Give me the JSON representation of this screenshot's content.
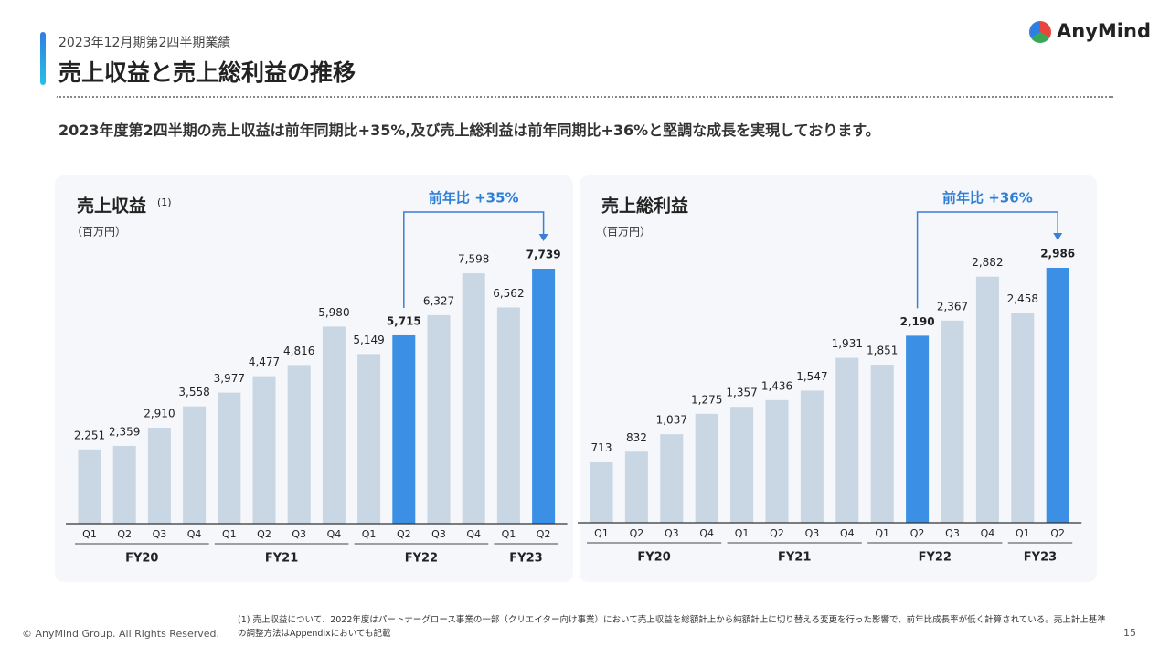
{
  "header": {
    "subtitle": "2023年12月期第2四半期業績",
    "title": "売上収益と売上総利益の推移",
    "logo": "AnyMind"
  },
  "summary": "2023年度第2四半期の売上収益は前年同期比+35%,及び売上総利益は前年同期比+36%と堅調な成長を実現しております。",
  "chart_data": [
    {
      "type": "bar",
      "title": "売上収益",
      "title_note": "(1)",
      "unit": "（百万円）",
      "categories": [
        "Q1",
        "Q2",
        "Q3",
        "Q4",
        "Q1",
        "Q2",
        "Q3",
        "Q4",
        "Q1",
        "Q2",
        "Q3",
        "Q4",
        "Q1",
        "Q2"
      ],
      "groups": [
        "FY20",
        "FY20",
        "FY20",
        "FY20",
        "FY21",
        "FY21",
        "FY21",
        "FY21",
        "FY22",
        "FY22",
        "FY22",
        "FY22",
        "FY23",
        "FY23"
      ],
      "values": [
        2251,
        2359,
        2910,
        3558,
        3977,
        4477,
        4816,
        5980,
        5149,
        5715,
        6327,
        7598,
        6562,
        7739
      ],
      "value_labels": [
        "2,251",
        "2,359",
        "2,910",
        "3,558",
        "3,977",
        "4,477",
        "4,816",
        "5,980",
        "5,149",
        "5,715",
        "6,327",
        "7,598",
        "6,562",
        "7,739"
      ],
      "colors": [
        "#c9d6e3",
        "#c9d6e3",
        "#c9d6e3",
        "#c9d6e3",
        "#c9d6e3",
        "#c9d6e3",
        "#c9d6e3",
        "#c9d6e3",
        "#c9d6e3",
        "#3b8fe4",
        "#c9d6e3",
        "#c9d6e3",
        "#c9d6e3",
        "#3b8fe4"
      ],
      "annotation": "前年比 +35%"
    },
    {
      "type": "bar",
      "title": "売上総利益",
      "unit": "（百万円）",
      "categories": [
        "Q1",
        "Q2",
        "Q3",
        "Q4",
        "Q1",
        "Q2",
        "Q3",
        "Q4",
        "Q1",
        "Q2",
        "Q3",
        "Q4",
        "Q1",
        "Q2"
      ],
      "groups": [
        "FY20",
        "FY20",
        "FY20",
        "FY20",
        "FY21",
        "FY21",
        "FY21",
        "FY21",
        "FY22",
        "FY22",
        "FY22",
        "FY22",
        "FY23",
        "FY23"
      ],
      "values": [
        713,
        832,
        1037,
        1275,
        1357,
        1436,
        1547,
        1931,
        1851,
        2190,
        2367,
        2882,
        2458,
        2986
      ],
      "value_labels": [
        "713",
        "832",
        "1,037",
        "1,275",
        "1,357",
        "1,436",
        "1,547",
        "1,931",
        "1,851",
        "2,190",
        "2,367",
        "2,882",
        "2,458",
        "2,986"
      ],
      "colors": [
        "#c9d6e3",
        "#c9d6e3",
        "#c9d6e3",
        "#c9d6e3",
        "#c9d6e3",
        "#c9d6e3",
        "#c9d6e3",
        "#c9d6e3",
        "#c9d6e3",
        "#3b8fe4",
        "#c9d6e3",
        "#c9d6e3",
        "#c9d6e3",
        "#3b8fe4"
      ],
      "annotation": "前年比 +36%"
    }
  ],
  "footer": {
    "copyright": "© AnyMind Group. All Rights Reserved.",
    "note": "(1) 売上収益について、2022年度はパートナーグロース事業の一部（クリエイター向け事業）において売上収益を総額計上から純額計上に切り替える変更を行った影響で、前年比成長率が低く計算されている。売上計上基準の調整方法はAppendixにおいても記載",
    "page": "15"
  }
}
